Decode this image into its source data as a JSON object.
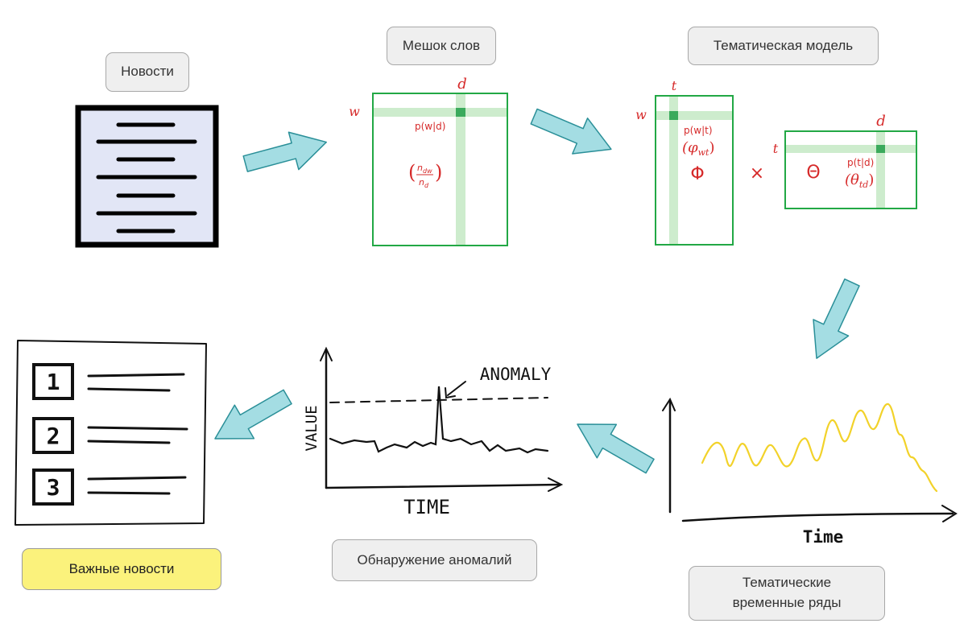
{
  "labels": {
    "news": "Новости",
    "bag_of_words": "Мешок слов",
    "topic_model": "Тематическая модель",
    "topic_time_series": "Тематические временные ряды",
    "anomaly_detection": "Обнаружение аномалий",
    "important_news": "Важные новости"
  },
  "bag_matrix": {
    "col_label": "d",
    "row_label": "w",
    "cell_label": "p(w|d)",
    "ratio_num": "n",
    "ratio_num_sub": "dw",
    "ratio_den": "n",
    "ratio_den_sub": "d"
  },
  "phi_matrix": {
    "col_label": "t",
    "row_label": "w",
    "cell_label": "p(w|t)",
    "param": "(φ",
    "param_sub": "wt",
    "param_close": ")",
    "symbol": "Φ"
  },
  "multiply_sign": "×",
  "theta_matrix": {
    "col_label": "d",
    "row_label": "t",
    "cell_label": "p(t|d)",
    "param": "(θ",
    "param_sub": "td",
    "param_close": ")",
    "symbol": "Θ"
  },
  "anomaly_chart": {
    "y_label": "VALUE",
    "x_label": "TIME",
    "annotation": "ANOMALY"
  },
  "time_series_chart": {
    "x_label": "Time"
  },
  "ranked_list": {
    "items": [
      "1",
      "2",
      "3"
    ]
  },
  "colors": {
    "matrix_border": "#22a845",
    "highlight_band": "#cdeccd",
    "highlight_cell": "#3aaa5c",
    "math_red": "#d62a2a",
    "arrow_fill": "#a4dde3",
    "arrow_stroke": "#2a8f98",
    "doc_fill": "#e2e6f6",
    "series_yellow": "#f2d22a",
    "label_yellow": "#fbf27c"
  }
}
